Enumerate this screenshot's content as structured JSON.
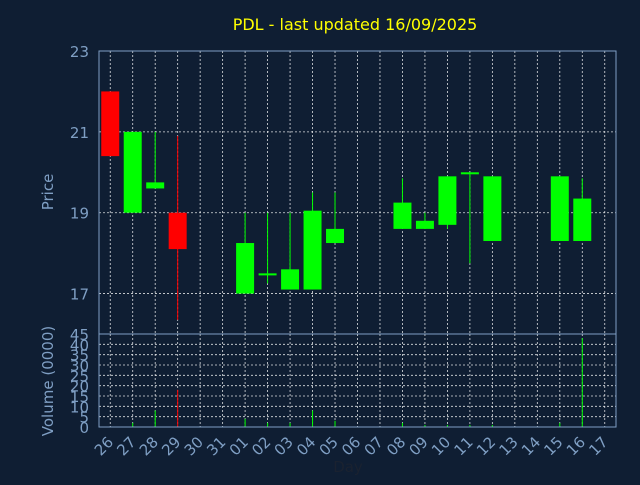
{
  "chart_data": {
    "type": "candlestick",
    "title": "PDL - last updated 16/09/2025",
    "xlabel": "Day",
    "ylabel_price": "Price",
    "ylabel_volume": "Volume (0000)",
    "x_tick_labels": [
      "26",
      "27",
      "28",
      "29",
      "30",
      "31",
      "01",
      "02",
      "03",
      "04",
      "05",
      "06",
      "07",
      "08",
      "09",
      "10",
      "11",
      "12",
      "13",
      "14",
      "15",
      "16",
      "17"
    ],
    "price_ticks": [
      17,
      19,
      21,
      23
    ],
    "price_ylim": [
      16.0,
      23.0
    ],
    "volume_ticks": [
      0,
      5,
      10,
      15,
      20,
      25,
      30,
      35,
      40,
      45
    ],
    "volume_ylim": [
      0,
      45
    ],
    "grid": true,
    "colors": {
      "up": "#00ff00",
      "down": "#ff0000",
      "title": "#ffff00",
      "axis": "#7f9fc4",
      "background": "#0f1e33"
    },
    "candles": [
      {
        "day": "26",
        "open": 22.0,
        "high": 22.0,
        "low": 20.4,
        "close": 20.4,
        "volume": 0
      },
      {
        "day": "27",
        "open": 19.0,
        "high": 21.0,
        "low": 19.0,
        "close": 21.0,
        "volume": 2
      },
      {
        "day": "28",
        "open": 19.6,
        "high": 21.0,
        "low": 19.6,
        "close": 19.75,
        "volume": 8
      },
      {
        "day": "29",
        "open": 19.0,
        "high": 20.9,
        "low": 16.35,
        "close": 18.1,
        "volume": 18
      },
      {
        "day": "01",
        "open": 17.0,
        "high": 19.0,
        "low": 17.0,
        "close": 18.25,
        "volume": 4
      },
      {
        "day": "02",
        "open": 17.45,
        "high": 19.0,
        "low": 17.25,
        "close": 17.5,
        "volume": 2
      },
      {
        "day": "03",
        "open": 17.1,
        "high": 19.0,
        "low": 17.1,
        "close": 17.6,
        "volume": 2
      },
      {
        "day": "04",
        "open": 17.1,
        "high": 19.5,
        "low": 17.1,
        "close": 19.05,
        "volume": 8
      },
      {
        "day": "05",
        "open": 18.25,
        "high": 19.5,
        "low": 18.25,
        "close": 18.6,
        "volume": 3
      },
      {
        "day": "08",
        "open": 18.6,
        "high": 19.85,
        "low": 18.6,
        "close": 19.25,
        "volume": 2
      },
      {
        "day": "09",
        "open": 18.6,
        "high": 19.0,
        "low": 18.6,
        "close": 18.8,
        "volume": 1
      },
      {
        "day": "10",
        "open": 18.7,
        "high": 19.9,
        "low": 18.6,
        "close": 19.9,
        "volume": 1
      },
      {
        "day": "11",
        "open": 19.95,
        "high": 20.0,
        "low": 17.75,
        "close": 20.0,
        "volume": 1
      },
      {
        "day": "12",
        "open": 18.3,
        "high": 19.9,
        "low": 18.3,
        "close": 19.9,
        "volume": 1
      },
      {
        "day": "15",
        "open": 18.3,
        "high": 19.9,
        "low": 18.3,
        "close": 19.9,
        "volume": 2
      },
      {
        "day": "16",
        "open": 18.3,
        "high": 19.85,
        "low": 18.3,
        "close": 19.35,
        "volume": 43
      }
    ]
  }
}
